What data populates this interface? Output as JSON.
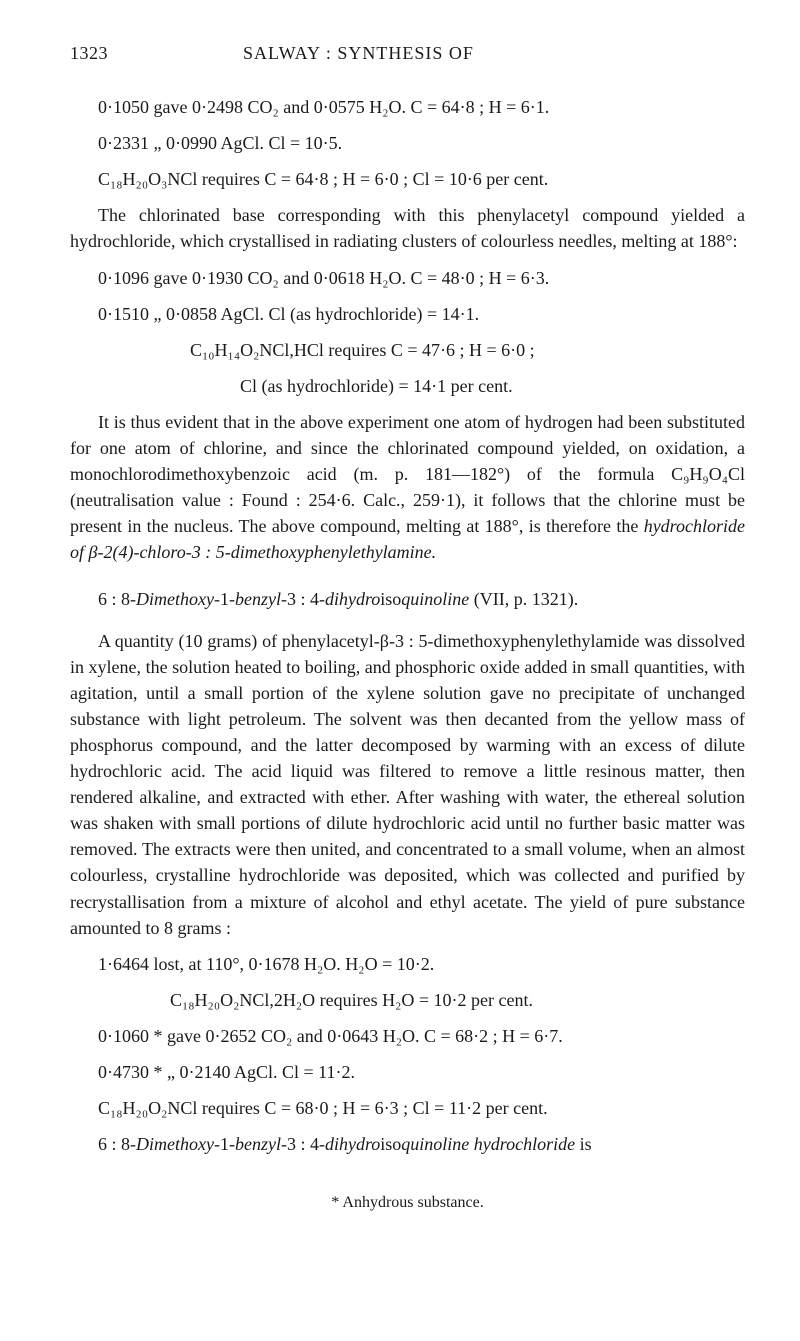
{
  "header": {
    "page_number": "1323",
    "running_title": "SALWAY : SYNTHESIS OF"
  },
  "block1": {
    "l1": "0·1050 gave 0·2498 CO₂ and 0·0575 H₂O.  C = 64·8 ;  H = 6·1.",
    "l2": "0·2331   „    0·0990  AgCl.   Cl = 10·5.",
    "l3": "C₁₈H₂₀O₃NCl  requires  C = 64·8 ;   H = 6·0 ;  Cl = 10·6  per  cent.",
    "p1": "The chlorinated base corresponding with this phenylacetyl compound yielded a hydrochloride, which crystallised in radiating clusters of colourless needles, melting at 188°:",
    "l4": "0·1096 gave 0·1930 CO₂ and 0·0618 H₂O.  C = 48·0 ;  H = 6·3.",
    "l5": "0·1510   „    0·0858  AgCl.   Cl (as hydrochloride) = 14·1.",
    "l6": "C₁₀H₁₄O₂NCl,HCl  requires  C = 47·6 ;   H = 6·0 ;",
    "l7": "Cl (as hydrochloride) = 14·1 per cent.",
    "p2a": "It is thus evident that in the above experiment one atom of hydrogen had been substituted for one atom of chlorine, and since the chlorinated compound yielded, on oxidation, a monochloro­dimethoxybenzoic acid (m. p. 181—182°) of the formula C₉H₉O₄Cl (neutralisation value : Found : 254·6.  Calc., 259·1), it follows that the chlorine must be present in the nucleus. The above compound, melting at 188°, is therefore the ",
    "p2i": "hydrochloride of β-2(4)-chloro-3 : 5-dimethoxyphenylethylamine.",
    "p2b": ""
  },
  "sectionTitle": {
    "a": "6 : 8-",
    "i1": "Dimethoxy-",
    "b": "1-",
    "i2": "benzyl-",
    "c": "3 : 4-",
    "i3": "dihydro",
    "d": "iso",
    "i4": "quinoline",
    "e": "  (VII, p. 1321)."
  },
  "block2": {
    "p1": "A quantity (10 grams) of phenylacetyl-β-3 : 5-dimethoxyphenyl­ethylamide was dissolved in xylene, the solution heated to boiling, and phosphoric oxide added in small quantities, with agitation, until a small portion of the xylene solution gave no precipitate of unchanged substance with light petroleum. The solvent was then decanted from the yellow mass of phosphorus compound, and the latter decomposed by warming with an excess of dilute hydro­chloric acid. The acid liquid was filtered to remove a little resinous matter, then rendered alkaline, and extracted with ether. After washing with water, the ethereal solution was shaken with small portions of dilute hydrochloric acid until no further basic matter was removed. The extracts were then united, and concentrated to a small volume, when an almost colourless, crystalline hydrochloride was deposited, which was collected and purified by recrystallisation from a mixture of alcohol and ethyl acetate. The yield of pure substance amounted to 8 grams :",
    "l1": "1·6464  lost,  at  110°,  0·1678  H₂O.   H₂O = 10·2.",
    "l2": "C₁₈H₂₀O₂NCl,2H₂O  requires  H₂O = 10·2  per  cent.",
    "l3": "0·1060 * gave 0·2652 CO₂  and 0·0643 H₂O.   C = 68·2 ;  H = 6·7.",
    "l4": "0·4730 *    „    0·2140  AgCl.   Cl = 11·2.",
    "l5": "C₁₈H₂₀O₂NCl  requires  C = 68·0 ;  H = 6·3 ;  Cl = 11·2  per  cent.",
    "p2a": "6 : 8-",
    "p2i1": "Dimethoxy-",
    "p2b": "1-",
    "p2i2": "benzyl-",
    "p2c": "3 : 4-",
    "p2i3": "dihydro",
    "p2d": "iso",
    "p2i4": "quinoline  hydrochloride",
    "p2e": "  is"
  },
  "footnote": "*  Anhydrous substance."
}
